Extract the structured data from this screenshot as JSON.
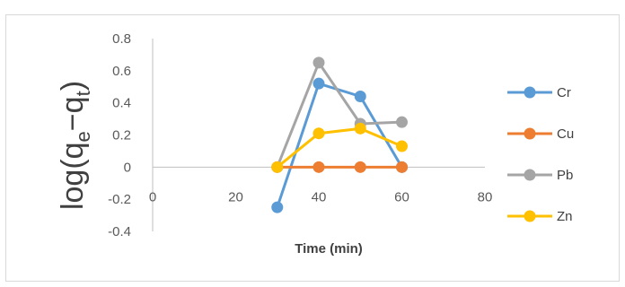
{
  "chart_data": {
    "type": "line",
    "title": "",
    "xlabel": "Time (min)",
    "ylabel": "log(qe−qt)",
    "ylabel_parts": {
      "prefix": "log(q",
      "sub1": "e",
      "minus": "−q",
      "sub2": "t",
      "suffix": ")"
    },
    "xlim": [
      0,
      80
    ],
    "ylim": [
      -0.4,
      0.8
    ],
    "x_ticks": [
      0,
      20,
      40,
      60,
      80
    ],
    "y_ticks": [
      -0.4,
      -0.2,
      0,
      0.2,
      0.4,
      0.6,
      0.8
    ],
    "x_tick_labels": [
      "0",
      "20",
      "40",
      "60",
      "80"
    ],
    "y_tick_labels": [
      "-0.4",
      "-0.2",
      "0",
      "0.2",
      "0.4",
      "0.6",
      "0.8"
    ],
    "grid": false,
    "legend_position": "right",
    "series": [
      {
        "name": "Cr",
        "color": "#5B9BD5",
        "x": [
          30,
          40,
          50,
          60
        ],
        "y": [
          -0.25,
          0.52,
          0.44,
          0.0
        ]
      },
      {
        "name": "Cu",
        "color": "#ED7D31",
        "x": [
          30,
          40,
          50,
          60
        ],
        "y": [
          0.0,
          0.0,
          0.0,
          0.0
        ]
      },
      {
        "name": "Pb",
        "color": "#A5A5A5",
        "x": [
          30,
          40,
          50,
          60
        ],
        "y": [
          0.0,
          0.65,
          0.27,
          0.28
        ]
      },
      {
        "name": "Zn",
        "color": "#FFC000",
        "x": [
          30,
          40,
          50,
          60
        ],
        "y": [
          0.0,
          0.21,
          0.24,
          0.13
        ]
      }
    ]
  }
}
